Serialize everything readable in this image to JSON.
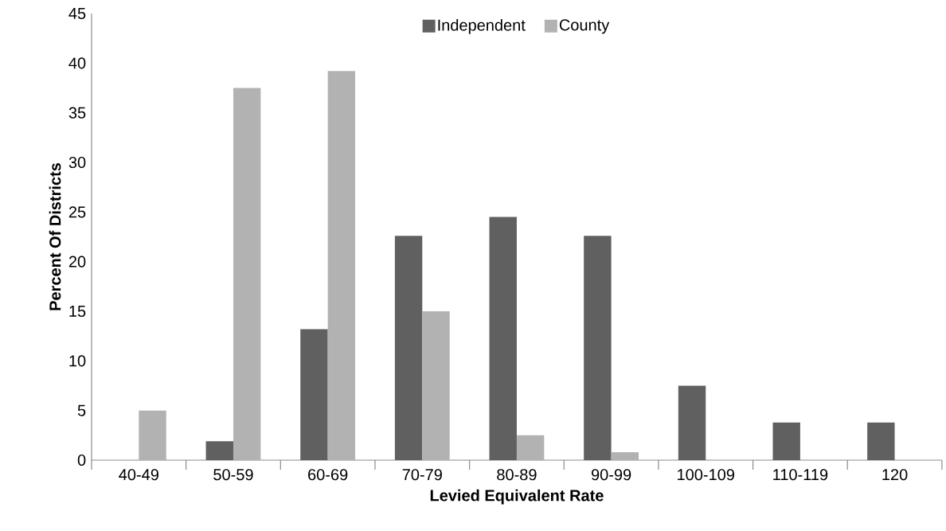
{
  "chart_data": {
    "type": "bar",
    "xlabel": "Levied Equivalent Rate",
    "ylabel": "Percent Of Districts",
    "categories": [
      "40-49",
      "50-59",
      "60-69",
      "70-79",
      "80-89",
      "90-99",
      "100-109",
      "110-119",
      "120"
    ],
    "series": [
      {
        "name": "Independent",
        "color": "#606060",
        "values": [
          0,
          1.9,
          13.2,
          22.6,
          24.5,
          22.6,
          7.5,
          3.8,
          3.8
        ]
      },
      {
        "name": "County",
        "color": "#b2b2b2",
        "values": [
          5.0,
          37.5,
          39.2,
          15.0,
          2.5,
          0.8,
          0,
          0,
          0
        ]
      }
    ],
    "ylim": [
      0,
      45
    ],
    "yticks": [
      0,
      5,
      10,
      15,
      20,
      25,
      30,
      35,
      40,
      45
    ],
    "grid": false,
    "legend": "top"
  }
}
